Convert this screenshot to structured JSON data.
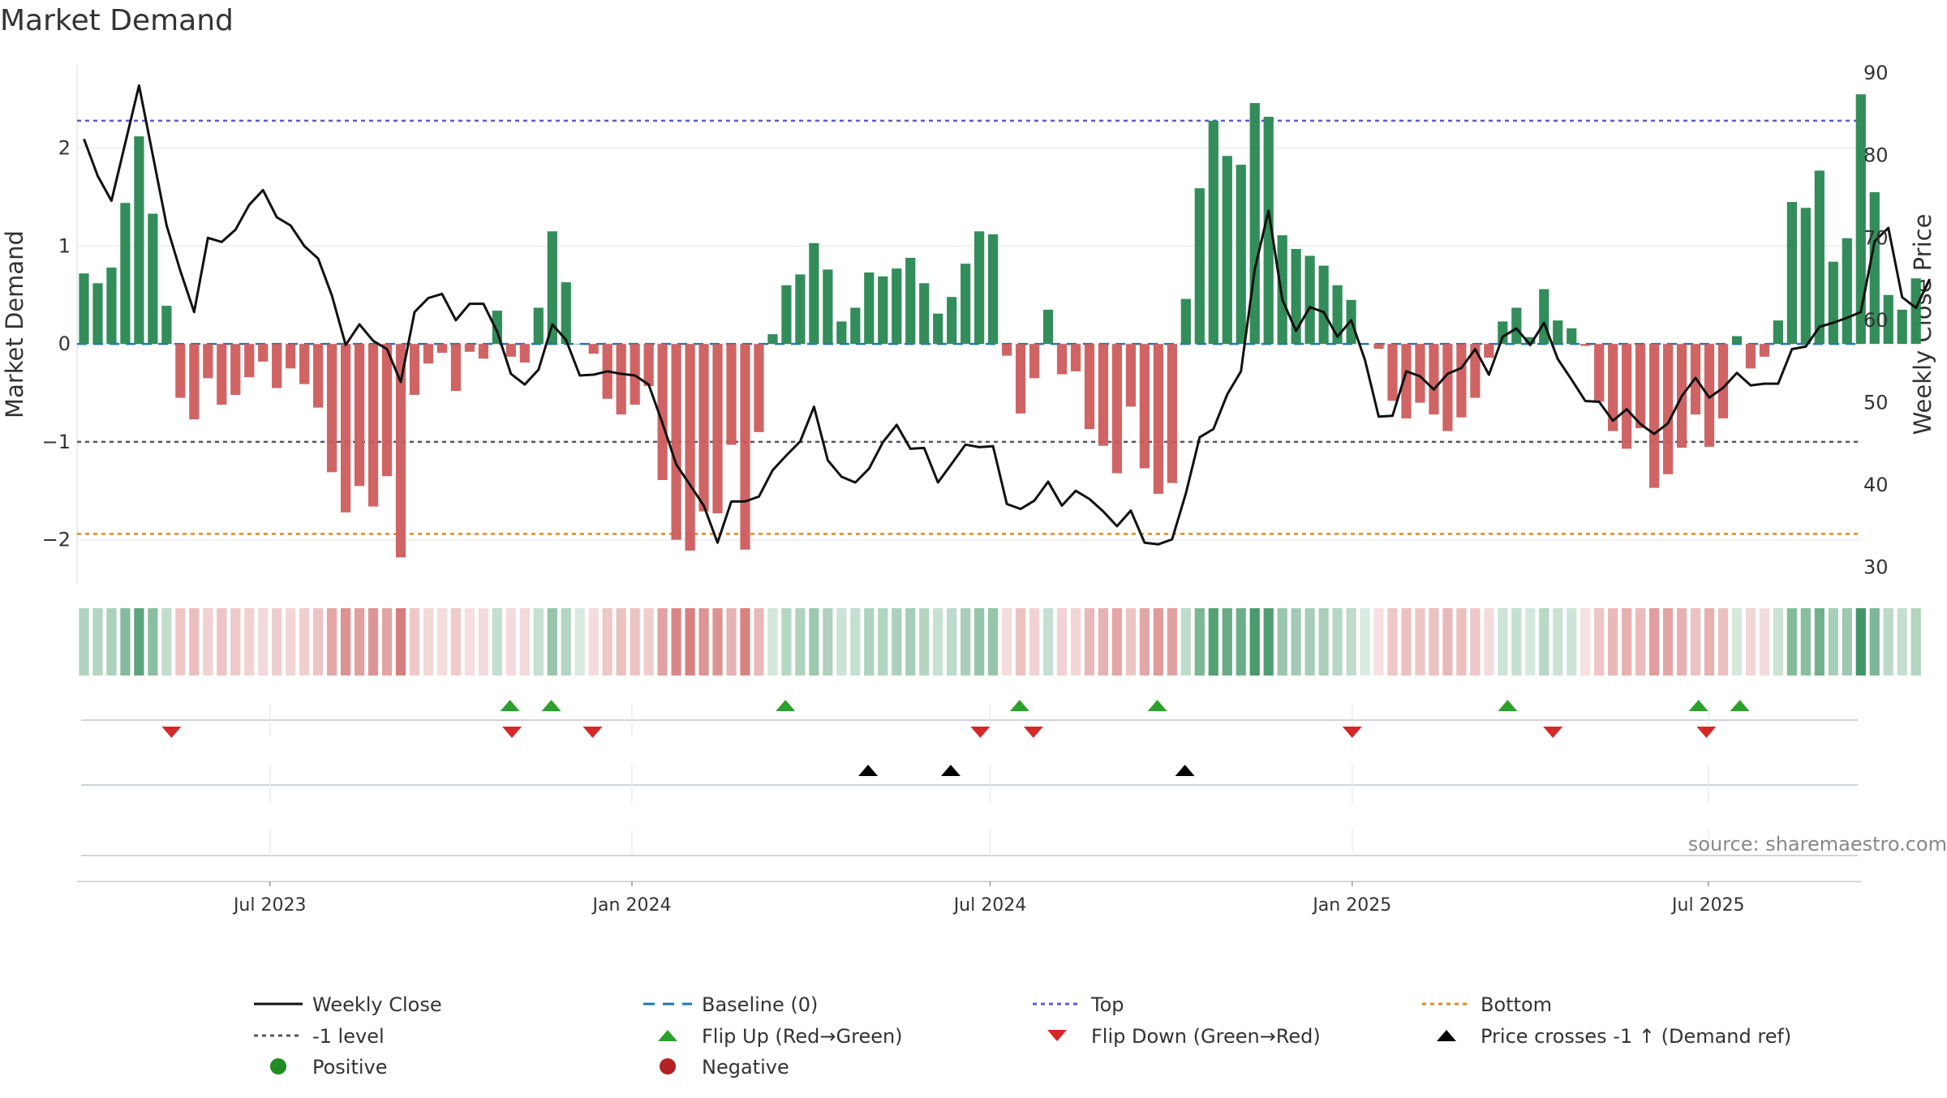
{
  "chart_data": {
    "type": "bar+line",
    "title": "Market Demand",
    "ylabel_left": "Market Demand",
    "ylabel_right": "Weekly Close Price",
    "ylim_left": [
      -2.45,
      2.85
    ],
    "ylim_right": [
      28,
      91
    ],
    "yticks_left": [
      2,
      1,
      0,
      -1,
      -2
    ],
    "ytick_labels_left": [
      "2",
      "1",
      "0",
      "−1",
      "−2"
    ],
    "yticks_right": [
      90,
      80,
      70,
      60,
      50,
      40,
      30
    ],
    "ytick_labels_right": [
      "90",
      "80",
      "70",
      "60",
      "50",
      "40",
      "30"
    ],
    "x_start": "2023-03-25",
    "x_end": "2025-09-17",
    "x_ticks": [
      {
        "date": "2023-07-01",
        "label": "Jul 2023"
      },
      {
        "date": "2024-01-01",
        "label": "Jan 2024"
      },
      {
        "date": "2024-07-01",
        "label": "Jul 2024"
      },
      {
        "date": "2025-01-01",
        "label": "Jan 2025"
      },
      {
        "date": "2025-07-01",
        "label": "Jul 2025"
      }
    ],
    "bar_start_date": "2023-03-25",
    "week_days": 7,
    "demand": [
      0.72,
      0.62,
      0.78,
      1.44,
      2.12,
      1.33,
      0.39,
      -0.55,
      -0.77,
      -0.35,
      -0.62,
      -0.52,
      -0.34,
      -0.18,
      -0.45,
      -0.25,
      -0.41,
      -0.65,
      -1.31,
      -1.72,
      -1.45,
      -1.66,
      -1.35,
      -2.18,
      -0.52,
      -0.2,
      -0.09,
      -0.48,
      -0.08,
      -0.15,
      0.34,
      -0.13,
      -0.19,
      0.37,
      1.15,
      0.63,
      0.0,
      -0.1,
      -0.56,
      -0.72,
      -0.62,
      -0.43,
      -1.39,
      -2.0,
      -2.11,
      -1.71,
      -1.73,
      -1.03,
      -2.1,
      -0.9,
      0.1,
      0.6,
      0.71,
      1.03,
      0.76,
      0.23,
      0.37,
      0.73,
      0.69,
      0.77,
      0.88,
      0.62,
      0.31,
      0.48,
      0.82,
      1.15,
      1.12,
      -0.12,
      -0.71,
      -0.35,
      0.35,
      -0.31,
      -0.28,
      -0.87,
      -1.04,
      -1.32,
      -0.64,
      -1.27,
      -1.53,
      -1.42,
      0.46,
      1.59,
      2.28,
      1.92,
      1.83,
      2.46,
      2.32,
      1.11,
      0.97,
      0.9,
      0.8,
      0.6,
      0.45,
      0.0,
      -0.05,
      -0.58,
      -0.76,
      -0.6,
      -0.72,
      -0.89,
      -0.75,
      -0.55,
      -0.14,
      0.23,
      0.37,
      0.07,
      0.56,
      0.24,
      0.16,
      -0.02,
      -0.59,
      -0.89,
      -1.07,
      -0.86,
      -1.47,
      -1.33,
      -1.06,
      -0.72,
      -1.05,
      -0.76,
      0.08,
      -0.25,
      -0.13,
      0.24,
      1.45,
      1.39,
      1.77,
      0.84,
      1.08,
      2.55,
      1.55,
      0.5,
      0.35,
      0.67
    ],
    "close": [
      82,
      77.5,
      74.5,
      81.5,
      88.5,
      80,
      71.5,
      66,
      61,
      70,
      69.5,
      71,
      74,
      75.8,
      72.5,
      71.5,
      69,
      67.5,
      63,
      57,
      59.5,
      57.5,
      56.5,
      52.5,
      61,
      62.7,
      63.2,
      60,
      62,
      62,
      58.6,
      53.5,
      52.2,
      54,
      59.5,
      57.6,
      53.3,
      53.4,
      53.8,
      53.5,
      53.3,
      52.2,
      47.5,
      42.5,
      40,
      37.5,
      33,
      38,
      38,
      38.6,
      41.8,
      43.6,
      45.3,
      49.5,
      43,
      41,
      40.3,
      42,
      45.2,
      47.3,
      44.4,
      44.5,
      40.3,
      42.6,
      44.9,
      44.6,
      44.7,
      37.7,
      37.1,
      38.1,
      40.4,
      37.5,
      39.3,
      38.3,
      36.8,
      35,
      36.9,
      33,
      32.8,
      33.4,
      39,
      45.8,
      46.8,
      51,
      53.8,
      66.2,
      73.3,
      62.5,
      58.7,
      61.6,
      61,
      58,
      60,
      55.2,
      48.3,
      48.4,
      53.8,
      53.2,
      51.6,
      53.5,
      54.2,
      56.5,
      53.4,
      58,
      59,
      57,
      59.7,
      55.3,
      52.8,
      50.2,
      50.1,
      47.8,
      49.2,
      47.4,
      46.2,
      47.5,
      50.8,
      53,
      50.6,
      51.8,
      53.6,
      52.1,
      52.3,
      52.3,
      56.5,
      56.8,
      59.2,
      59.7,
      60.3,
      61,
      69.6,
      71.2,
      62.8,
      61.5,
      65
    ],
    "levels": {
      "top": 2.28,
      "minus_one": -1.0,
      "bottom": -1.94,
      "baseline": 0
    },
    "flip_up_dates": [
      "2023-10-31",
      "2023-11-21",
      "2024-03-19",
      "2024-07-16",
      "2024-09-24",
      "2025-03-21",
      "2025-06-26",
      "2025-07-17"
    ],
    "flip_down_dates": [
      "2023-05-12",
      "2023-11-01",
      "2023-12-12",
      "2024-06-26",
      "2024-07-23",
      "2025-01-01",
      "2025-04-13",
      "2025-06-30"
    ],
    "price_cross_dates": [
      "2024-04-30",
      "2024-06-11",
      "2024-10-08"
    ],
    "source": "source: sharemaestro.com",
    "legend": {
      "weekly_close": "Weekly Close",
      "baseline": "Baseline (0)",
      "top": "Top",
      "bottom": "Bottom",
      "minus_one": "-1 level",
      "flip_up": "Flip Up (Red→Green)",
      "flip_down": "Flip Down (Green→Red)",
      "price_cross": "Price crosses -1 ↑ (Demand ref)",
      "positive": "Positive",
      "negative": "Negative"
    }
  },
  "colors": {
    "positive_bar": "#2e8b57",
    "negative_bar": "#cd5c5c",
    "close_line": "#111111",
    "baseline": "#1f77b4",
    "top_line": "#5c5cc8",
    "minus_one_line": "#555566",
    "bottom_line": "#e08a1e",
    "flip_up": "#2ca02c",
    "flip_down": "#d62728",
    "price_cross": "#000000",
    "positive_dot": "#228b22",
    "negative_dot": "#b22222",
    "heat_green_rgb": "46,139,87",
    "heat_red_rgb": "205,92,92"
  }
}
